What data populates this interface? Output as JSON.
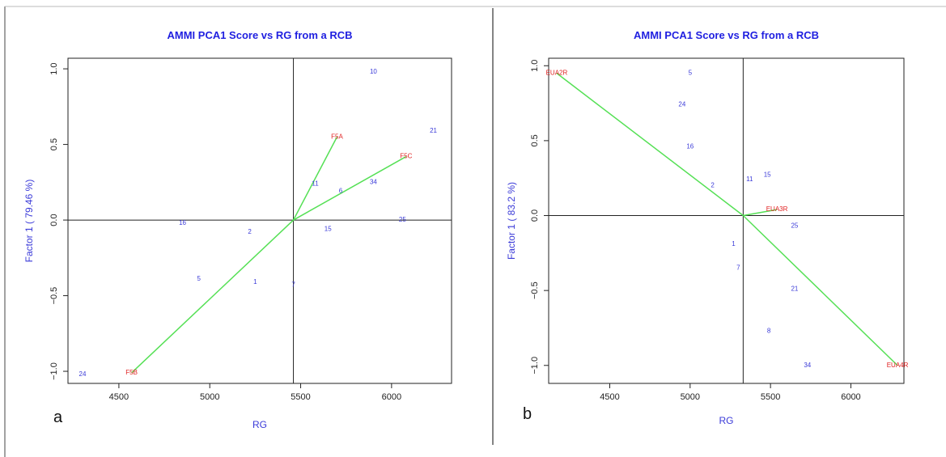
{
  "colors": {
    "title": "#1f1fe0",
    "axis_title": "#3a3ad8",
    "genotype": "#3a3ad8",
    "environment": "#e02020",
    "vector": "#55e055",
    "line": "#222222"
  },
  "chart_data": [
    {
      "type": "scatter",
      "panel_label": "a",
      "title": "AMMI PCA1 Score vs RG from a RCB",
      "xlabel": "RG",
      "ylabel": "Factor 1 ( 79.46 %)",
      "xlim": [
        4220,
        6330
      ],
      "ylim": [
        -1.08,
        1.07
      ],
      "xticks": [
        4500,
        5000,
        5500,
        6000
      ],
      "yticks": [
        -1.0,
        -0.5,
        0.0,
        0.5,
        1.0
      ],
      "xtick_labels": [
        "4500",
        "5000",
        "5500",
        "6000"
      ],
      "ytick_labels": [
        "−1.0",
        "−0.5",
        "0.0",
        "0.5",
        "1.0"
      ],
      "grand_mean": 5460,
      "origin": [
        5460,
        0.0
      ],
      "genotypes": [
        {
          "label": "10",
          "x": 5900,
          "y": 0.98
        },
        {
          "label": "21",
          "x": 6230,
          "y": 0.59
        },
        {
          "label": "11",
          "x": 5580,
          "y": 0.24
        },
        {
          "label": "6",
          "x": 5720,
          "y": 0.19
        },
        {
          "label": "34",
          "x": 5900,
          "y": 0.25
        },
        {
          "label": "16",
          "x": 4850,
          "y": -0.02
        },
        {
          "label": "2",
          "x": 5220,
          "y": -0.08
        },
        {
          "label": "15",
          "x": 5650,
          "y": -0.06
        },
        {
          "label": "25",
          "x": 6060,
          "y": 0.0
        },
        {
          "label": "5",
          "x": 4940,
          "y": -0.39
        },
        {
          "label": "1",
          "x": 5250,
          "y": -0.41
        },
        {
          "label": "7",
          "x": 5460,
          "y": -0.43
        },
        {
          "label": "24",
          "x": 4300,
          "y": -1.02
        }
      ],
      "environments": [
        {
          "label": "F5A",
          "x": 5700,
          "y": 0.55
        },
        {
          "label": "F5C",
          "x": 6080,
          "y": 0.42
        },
        {
          "label": "F5B",
          "x": 4570,
          "y": -1.01
        }
      ]
    },
    {
      "type": "scatter",
      "panel_label": "b",
      "title": "AMMI PCA1 Score vs RG from a RCB",
      "xlabel": "RG",
      "ylabel": "Factor 1 ( 83.2 %)",
      "xlim": [
        4120,
        6330
      ],
      "ylim": [
        -1.12,
        1.05
      ],
      "xticks": [
        4500,
        5000,
        5500,
        6000
      ],
      "yticks": [
        -1.0,
        -0.5,
        0.0,
        0.5,
        1.0
      ],
      "xtick_labels": [
        "4500",
        "5000",
        "5500",
        "6000"
      ],
      "ytick_labels": [
        "−1.0",
        "−0.5",
        "0.0",
        "0.5",
        "1.0"
      ],
      "grand_mean": 5330,
      "origin": [
        5330,
        0.0
      ],
      "genotypes": [
        {
          "label": "5",
          "x": 5000,
          "y": 0.95
        },
        {
          "label": "24",
          "x": 4950,
          "y": 0.74
        },
        {
          "label": "16",
          "x": 5000,
          "y": 0.46
        },
        {
          "label": "2",
          "x": 5140,
          "y": 0.2
        },
        {
          "label": "11",
          "x": 5370,
          "y": 0.24
        },
        {
          "label": "15",
          "x": 5480,
          "y": 0.27
        },
        {
          "label": "25",
          "x": 5650,
          "y": -0.07
        },
        {
          "label": "1",
          "x": 5270,
          "y": -0.19
        },
        {
          "label": "7",
          "x": 5300,
          "y": -0.35
        },
        {
          "label": "21",
          "x": 5650,
          "y": -0.49
        },
        {
          "label": "8",
          "x": 5490,
          "y": -0.77
        },
        {
          "label": "34",
          "x": 5730,
          "y": -1.0
        }
      ],
      "environments": [
        {
          "label": "EUA2R",
          "x": 4170,
          "y": 0.95
        },
        {
          "label": "EUA3R",
          "x": 5540,
          "y": 0.04
        },
        {
          "label": "EUA4R",
          "x": 6290,
          "y": -1.0
        }
      ]
    }
  ]
}
